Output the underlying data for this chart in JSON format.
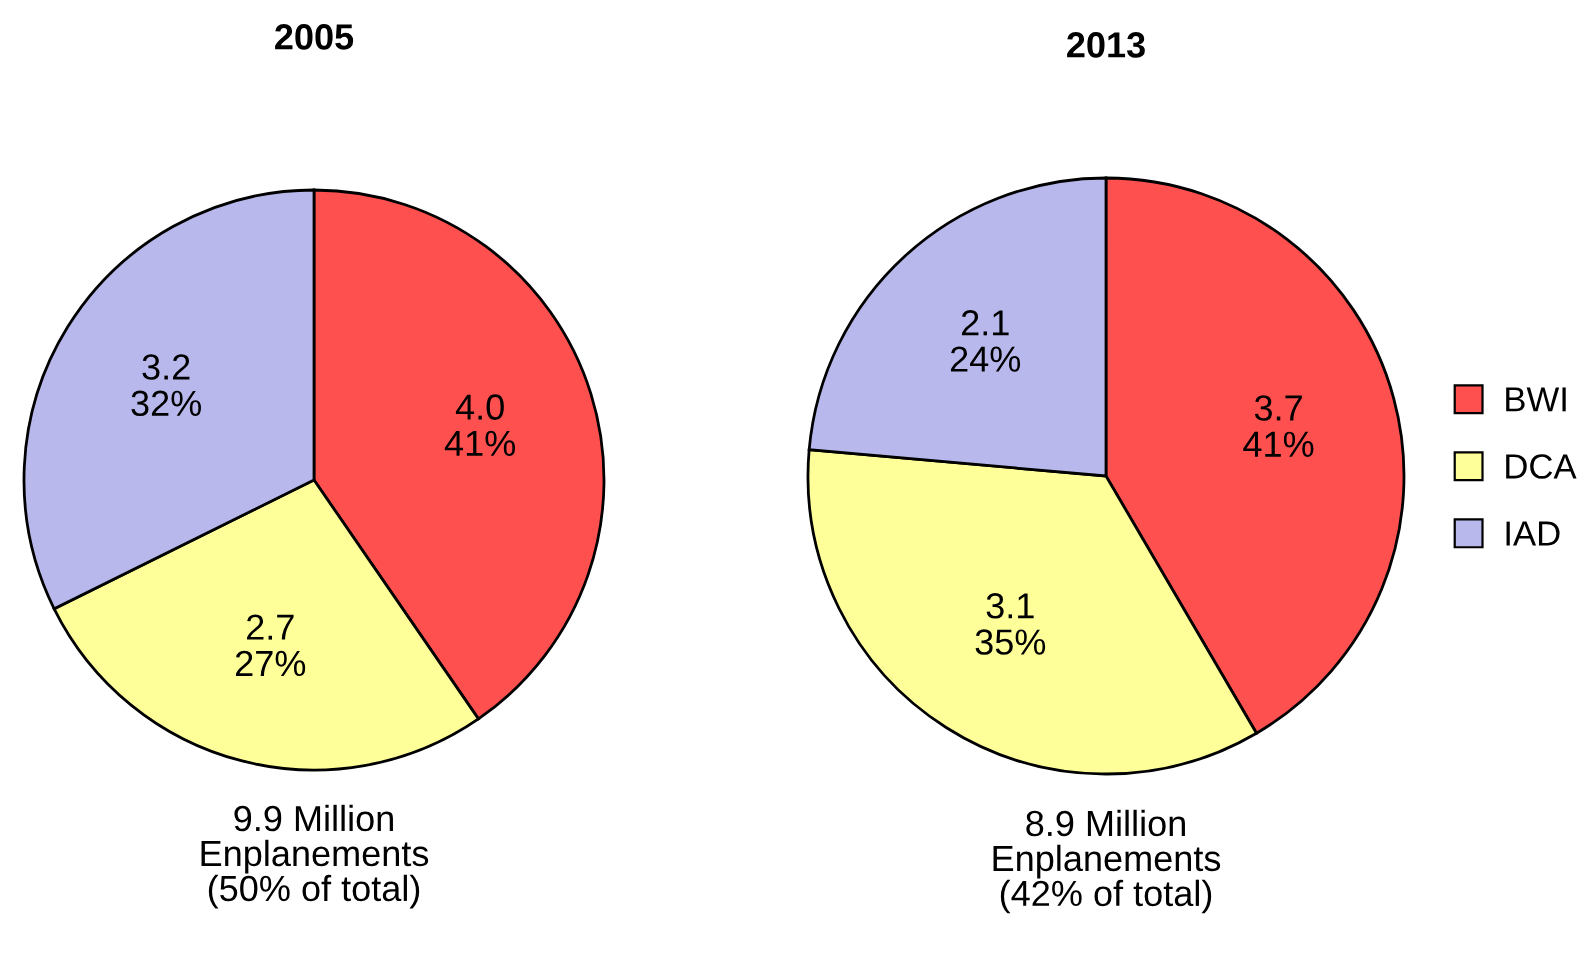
{
  "chart_data": [
    {
      "type": "pie",
      "title": "2005",
      "categories": [
        null,
        null,
        null
      ],
      "values": [
        4.0,
        2.7,
        3.2
      ],
      "colors": [
        "#ff5050",
        "#ffff99",
        "#b8b8ec"
      ],
      "value_labels": [
        "4.0\n41%",
        "2.7\n27%",
        "3.2\n32%"
      ],
      "annotations": [
        "9.9 Million\nEnplanements\n(50% of total)"
      ],
      "legend": false
    },
    {
      "type": "pie",
      "title": "2013",
      "categories": [
        "BWI",
        "DCA",
        "IAD"
      ],
      "values": [
        3.7,
        3.1,
        2.1
      ],
      "colors": [
        "#ff5050",
        "#ffff99",
        "#b8b8ec"
      ],
      "value_labels": [
        "3.7\n41%",
        "3.1\n35%",
        "2.1\n24%"
      ],
      "annotations": [
        "8.9 Million\nEnplanements\n(42% of total)"
      ],
      "legend": "right"
    }
  ]
}
